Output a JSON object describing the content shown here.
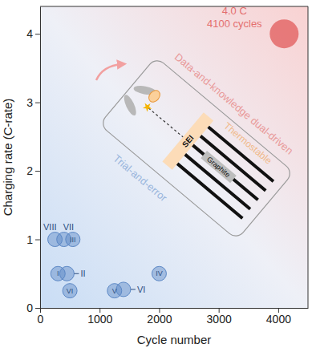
{
  "chart_data": {
    "type": "scatter",
    "x_label": "Cycle number",
    "y_label": "Charging rate (C-rate)",
    "xlim": [
      0,
      4500
    ],
    "xticks": [
      0,
      1000,
      2000,
      3000,
      4000
    ],
    "ylim": [
      0,
      4.4
    ],
    "yticks": [
      0,
      1,
      2,
      3,
      4
    ],
    "grid": false,
    "series": [
      {
        "color": "#5b87c5",
        "marker": "circle",
        "x": [
          250,
          400,
          550,
          300,
          450,
          500,
          1250,
          1400,
          2000
        ],
        "values": [
          1.0,
          1.0,
          1.0,
          0.5,
          0.5,
          0.25,
          0.25,
          0.27,
          0.5
        ],
        "labels": [
          "VIII",
          "VII",
          "III",
          "I",
          "II",
          "VI",
          "V",
          "VI",
          "IV"
        ]
      },
      {
        "color": "#e46f6f",
        "marker": "circle",
        "x": [
          4100
        ],
        "values": [
          4.0
        ],
        "value_labels": [
          "4.0 C"
        ],
        "x_labels": [
          "4100 cycles"
        ]
      }
    ],
    "annotations": [
      "Trial-and-error",
      "Data-and-knowledge dual-driven",
      "Thermostable",
      "SEI",
      "Graphite"
    ]
  }
}
